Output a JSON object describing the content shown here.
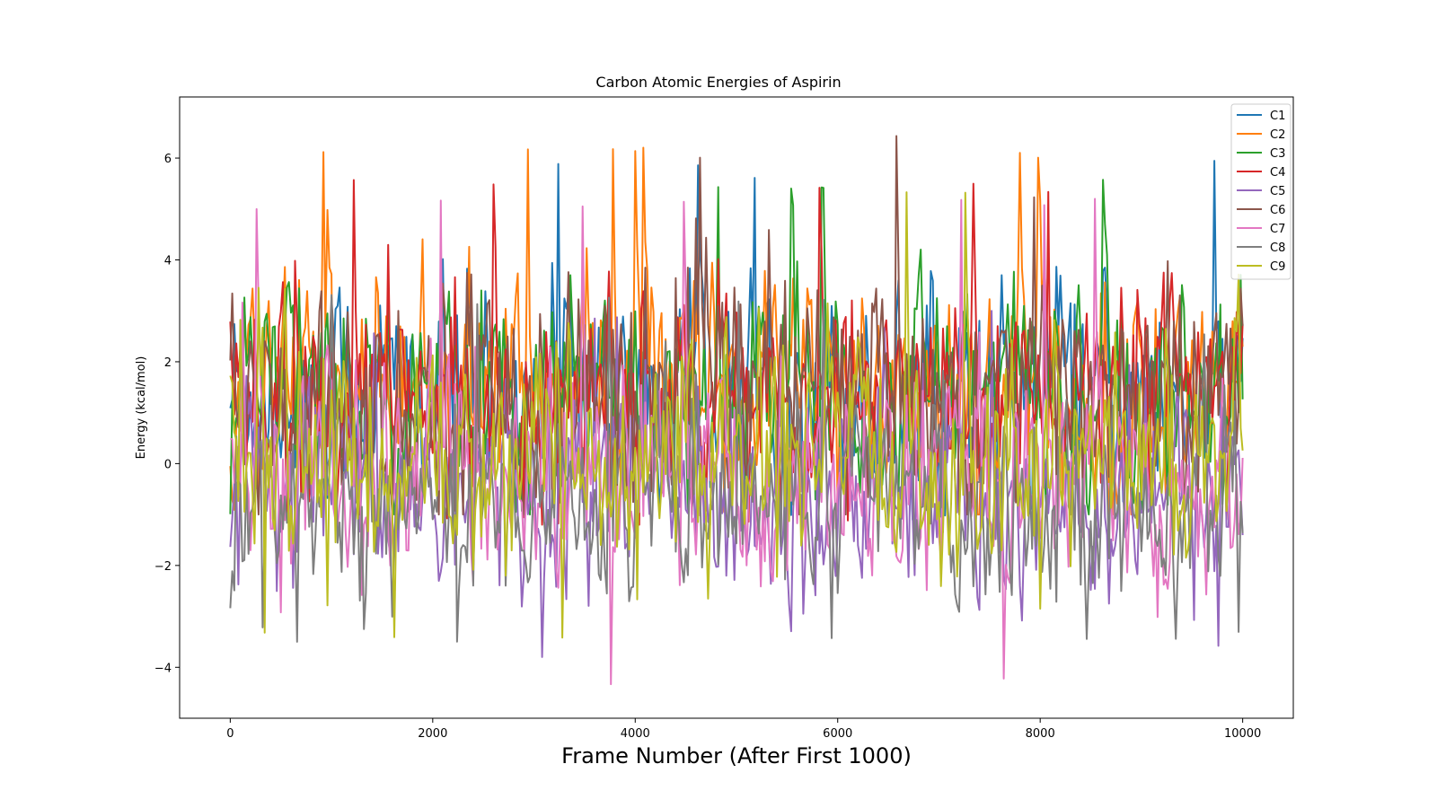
{
  "chart_data": {
    "type": "line",
    "title": "Carbon Atomic Energies of Aspirin",
    "xlabel": "Frame Number (After First 1000)",
    "ylabel": "Energy (kcal/mol)",
    "xlim": [
      -500,
      10500
    ],
    "ylim": [
      -5.0,
      7.2
    ],
    "xticks": [
      0,
      2000,
      4000,
      6000,
      8000,
      10000
    ],
    "xtick_labels": [
      "0",
      "2000",
      "4000",
      "6000",
      "8000",
      "10000"
    ],
    "yticks": [
      -4,
      -2,
      0,
      2,
      4,
      6
    ],
    "ytick_labels": [
      "−4",
      "−2",
      "0",
      "2",
      "4",
      "6"
    ],
    "grid": false,
    "legend_position": "top-right",
    "x_step": 20,
    "x_range": [
      0,
      10000
    ],
    "series": [
      {
        "name": "C1",
        "color": "#1f77b4",
        "mean": 1.4,
        "std": 1.0,
        "min": -1.2,
        "max": 6.0
      },
      {
        "name": "C2",
        "color": "#ff7f0e",
        "mean": 1.5,
        "std": 1.0,
        "min": -1.0,
        "max": 6.3
      },
      {
        "name": "C3",
        "color": "#2ca02c",
        "mean": 1.6,
        "std": 1.0,
        "min": -1.0,
        "max": 5.7
      },
      {
        "name": "C4",
        "color": "#d62728",
        "mean": 1.3,
        "std": 0.9,
        "min": -1.2,
        "max": 5.6
      },
      {
        "name": "C5",
        "color": "#9467bd",
        "mean": -0.6,
        "std": 1.0,
        "min": -3.8,
        "max": 3.0
      },
      {
        "name": "C6",
        "color": "#8c564b",
        "mean": 1.4,
        "std": 1.1,
        "min": -1.0,
        "max": 6.6
      },
      {
        "name": "C7",
        "color": "#e377c2",
        "mean": -0.3,
        "std": 1.0,
        "min": -4.4,
        "max": 5.2
      },
      {
        "name": "C8",
        "color": "#7f7f7f",
        "mean": -0.7,
        "std": 0.9,
        "min": -3.5,
        "max": 3.4
      },
      {
        "name": "C9",
        "color": "#bcbd22",
        "mean": 0.1,
        "std": 1.0,
        "min": -3.6,
        "max": 5.5
      }
    ]
  }
}
